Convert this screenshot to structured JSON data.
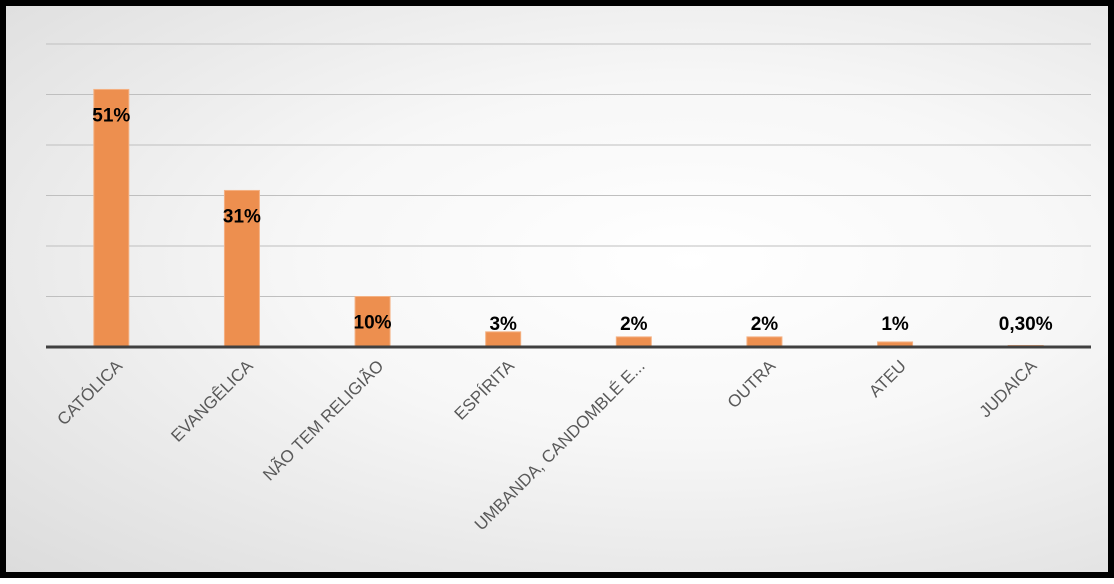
{
  "chart_data": {
    "type": "bar",
    "categories": [
      "CATÓLICA",
      "EVANGÊLICA",
      "NÃO TEM RELIGIÃO",
      "ESPÍRITA",
      "UMBANDA, CANDOMBLÉ E...",
      "OUTRA",
      "ATEU",
      "JUDAICA"
    ],
    "values": [
      51,
      31,
      10,
      3,
      2,
      2,
      1,
      0.3
    ],
    "data_labels": [
      "51%",
      "31%",
      "10%",
      "3%",
      "2%",
      "2%",
      "1%",
      "0,30%"
    ],
    "ylim": [
      0,
      60
    ],
    "grid": true,
    "legend": "none",
    "colors": {
      "bar": "#ED8F4F",
      "bar_stroke": "#F4B183",
      "axis": "#404040",
      "grid": "#bfbfbf"
    }
  }
}
